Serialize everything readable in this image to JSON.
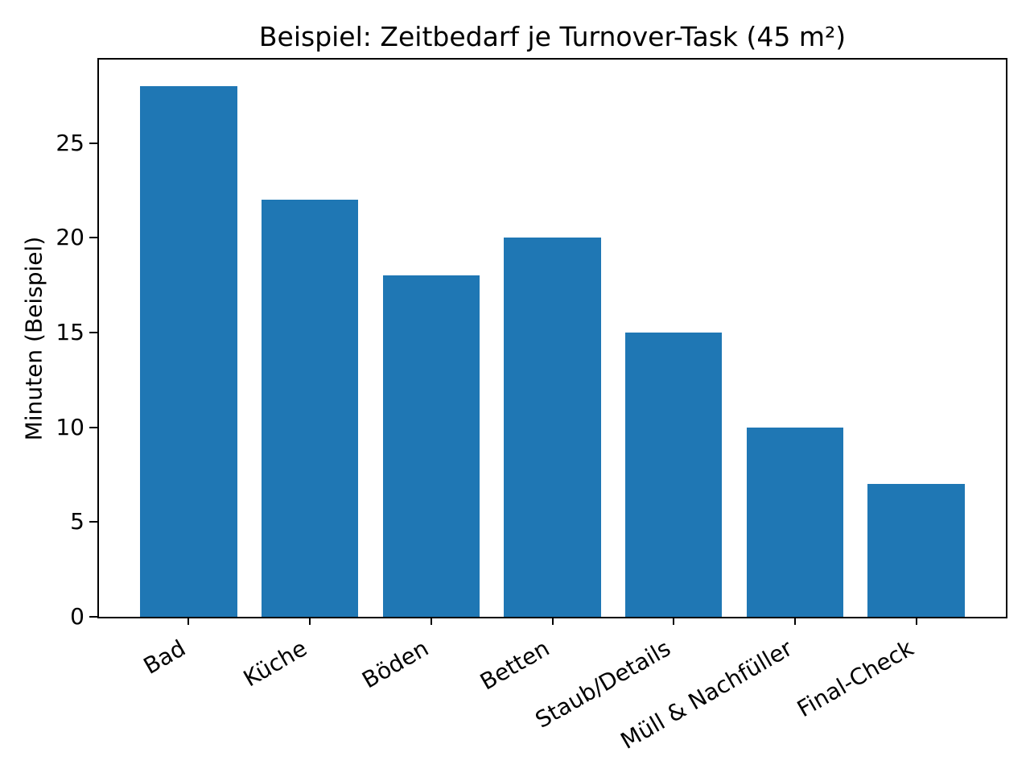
{
  "chart_data": {
    "type": "bar",
    "title": "Beispiel: Zeitbedarf je Turnover-Task (45 m²)",
    "categories": [
      "Bad",
      "Küche",
      "Böden",
      "Betten",
      "Staub/Details",
      "Müll & Nachfüller",
      "Final-Check"
    ],
    "values": [
      28,
      22,
      18,
      20,
      15,
      10,
      7
    ],
    "xlabel": "",
    "ylabel": "Minuten (Beispiel)",
    "yticks": [
      0,
      5,
      10,
      15,
      20,
      25
    ],
    "ylim": [
      0,
      29.4
    ],
    "xlim": [
      -0.74,
      6.74
    ],
    "bar_width": 0.8,
    "bar_color": "#1f77b4",
    "axis_color": "#000000",
    "text_color": "#000000",
    "background": "#ffffff",
    "x_tick_rotation_deg": 30,
    "grid": false,
    "legend_position": "none"
  }
}
